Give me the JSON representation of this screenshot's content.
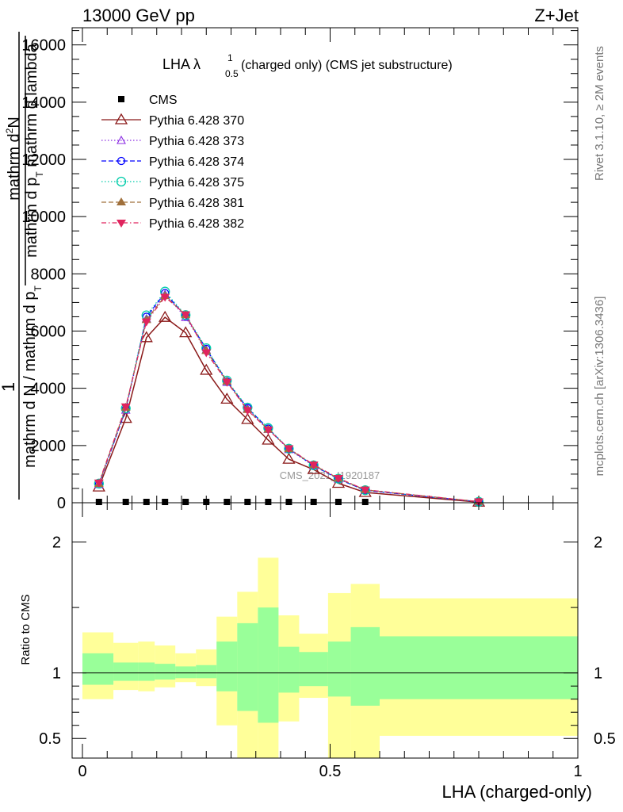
{
  "header": {
    "energy_label": "13000 GeV pp",
    "process_label": "Z+Jet"
  },
  "side_labels": {
    "rivet": "Rivet 3.1.10, ≥ 2M events",
    "mcplots": "mcplots.cern.ch [arXiv:1306.3436]"
  },
  "watermark": "CMS_2021_I1920187",
  "chart_data": [
    {
      "type": "line",
      "panel": "main",
      "title_main": "LHA λ",
      "title_sup": "1",
      "title_sub": "0.5",
      "title_rest": "(charged only) (CMS jet substructure)",
      "ylabel_parts": {
        "one": "1",
        "upper_frac_num": "mathrm d",
        "upper_frac_num_sup": "2",
        "upper_frac_num_rest": "N",
        "upper_frac_den": "mathrm d p",
        "upper_frac_den_sub": "T",
        "upper_frac_den_rest": " mathrm d lambda",
        "lower_den_a": "mathrm d N",
        "lower_den_b": " / mathrm d p",
        "lower_den_b_sub": "T"
      },
      "xlim": [
        0,
        1
      ],
      "ylim": [
        0,
        16600
      ],
      "yticks": [
        {
          "value": 2000,
          "label": "2000"
        },
        {
          "value": 4000,
          "label": "4000"
        },
        {
          "value": 6000,
          "label": "6000"
        },
        {
          "value": 8000,
          "label": "8000"
        },
        {
          "value": 10000,
          "label": "10000"
        },
        {
          "value": 12000,
          "label": "12000"
        },
        {
          "value": 14000,
          "label": "14000"
        },
        {
          "value": 16000,
          "label": "16000"
        }
      ],
      "ytick_zero_label": "0",
      "legend_position": "top-left",
      "x": [
        0.0333,
        0.0875,
        0.1292,
        0.1667,
        0.2083,
        0.25,
        0.2917,
        0.3333,
        0.375,
        0.4167,
        0.4667,
        0.5167,
        0.5708,
        0.8
      ],
      "series": [
        {
          "name": "CMS",
          "color": "#000000",
          "marker": "square",
          "line": "none",
          "values": [
            20,
            20,
            20,
            20,
            20,
            20,
            20,
            20,
            20,
            20,
            20,
            20,
            20,
            0
          ]
        },
        {
          "name": "Pythia 6.428 370",
          "color": "#8b1a1a",
          "marker": "open-triangle",
          "line": "solid",
          "values": [
            550,
            2950,
            5770,
            6480,
            5940,
            4630,
            3620,
            2910,
            2190,
            1520,
            1160,
            680,
            360,
            20
          ]
        },
        {
          "name": "Pythia 6.428 373",
          "color": "#8a2be2",
          "marker": "open-triangle-small",
          "line": "dotted",
          "values": [
            640,
            3240,
            6430,
            7280,
            6480,
            5340,
            4210,
            3290,
            2570,
            1860,
            1290,
            830,
            430,
            35
          ]
        },
        {
          "name": "Pythia 6.428 374",
          "color": "#0000ff",
          "marker": "open-circle",
          "line": "dashed",
          "values": [
            640,
            3270,
            6500,
            7330,
            6520,
            5380,
            4240,
            3310,
            2590,
            1880,
            1300,
            830,
            430,
            35
          ]
        },
        {
          "name": "Pythia 6.428 375",
          "color": "#00ccaa",
          "marker": "open-circle-large",
          "line": "dotted",
          "values": [
            670,
            3300,
            6550,
            7380,
            6560,
            5400,
            4270,
            3330,
            2610,
            1890,
            1310,
            840,
            440,
            35
          ]
        },
        {
          "name": "Pythia 6.428 381",
          "color": "#a0703c",
          "marker": "filled-triangle",
          "line": "dashed",
          "values": [
            660,
            3330,
            6390,
            7230,
            6560,
            5310,
            4240,
            3250,
            2560,
            1880,
            1320,
            850,
            450,
            40
          ]
        },
        {
          "name": "Pythia 6.428 382",
          "color": "#e0245e",
          "marker": "filled-triangle-down",
          "line": "dashdot",
          "values": [
            700,
            3360,
            6330,
            7190,
            6580,
            5250,
            4220,
            3230,
            2550,
            1900,
            1330,
            860,
            455,
            40
          ]
        }
      ]
    },
    {
      "type": "area",
      "panel": "ratio",
      "ylabel": "Ratio to CMS",
      "xlabel": "LHA (charged-only)",
      "xlim": [
        0,
        1
      ],
      "ylim": [
        0.35,
        2.3
      ],
      "xticks": [
        {
          "value": 0,
          "label": "0"
        },
        {
          "value": 0.5,
          "label": "0.5"
        },
        {
          "value": 1,
          "label": "1"
        }
      ],
      "yticks": [
        {
          "value": 0.5,
          "label": "0.5"
        },
        {
          "value": 1,
          "label": "1"
        },
        {
          "value": 2,
          "label": "2"
        }
      ],
      "reference_line": 1,
      "bins": [
        {
          "x0": 0.0,
          "x1": 0.0625,
          "inner": [
            0.91,
            1.15
          ],
          "outer": [
            0.8,
            1.31
          ]
        },
        {
          "x0": 0.0625,
          "x1": 0.1125,
          "inner": [
            0.94,
            1.08
          ],
          "outer": [
            0.87,
            1.23
          ]
        },
        {
          "x0": 0.1125,
          "x1": 0.1458,
          "inner": [
            0.94,
            1.08
          ],
          "outer": [
            0.86,
            1.24
          ]
        },
        {
          "x0": 0.1458,
          "x1": 0.1875,
          "inner": [
            0.95,
            1.07
          ],
          "outer": [
            0.89,
            1.21
          ]
        },
        {
          "x0": 0.1875,
          "x1": 0.2292,
          "inner": [
            0.96,
            1.05
          ],
          "outer": [
            0.93,
            1.15
          ]
        },
        {
          "x0": 0.2292,
          "x1": 0.2708,
          "inner": [
            0.96,
            1.06
          ],
          "outer": [
            0.9,
            1.18
          ]
        },
        {
          "x0": 0.2708,
          "x1": 0.3125,
          "inner": [
            0.86,
            1.24
          ],
          "outer": [
            0.6,
            1.43
          ]
        },
        {
          "x0": 0.3125,
          "x1": 0.3542,
          "inner": [
            0.71,
            1.38
          ],
          "outer": [
            0.35,
            1.62
          ]
        },
        {
          "x0": 0.3542,
          "x1": 0.3958,
          "inner": [
            0.62,
            1.5
          ],
          "outer": [
            0.35,
            1.88
          ]
        },
        {
          "x0": 0.3958,
          "x1": 0.4375,
          "inner": [
            0.85,
            1.2
          ],
          "outer": [
            0.63,
            1.44
          ]
        },
        {
          "x0": 0.4375,
          "x1": 0.4958,
          "inner": [
            0.9,
            1.16
          ],
          "outer": [
            0.81,
            1.3
          ]
        },
        {
          "x0": 0.4958,
          "x1": 0.5417,
          "inner": [
            0.82,
            1.24
          ],
          "outer": [
            0.35,
            1.61
          ]
        },
        {
          "x0": 0.5417,
          "x1": 0.6,
          "inner": [
            0.75,
            1.35
          ],
          "outer": [
            0.35,
            1.68
          ]
        },
        {
          "x0": 0.6,
          "x1": 1.0,
          "inner": [
            0.8,
            1.28
          ],
          "outer": [
            0.52,
            1.57
          ]
        }
      ]
    }
  ]
}
